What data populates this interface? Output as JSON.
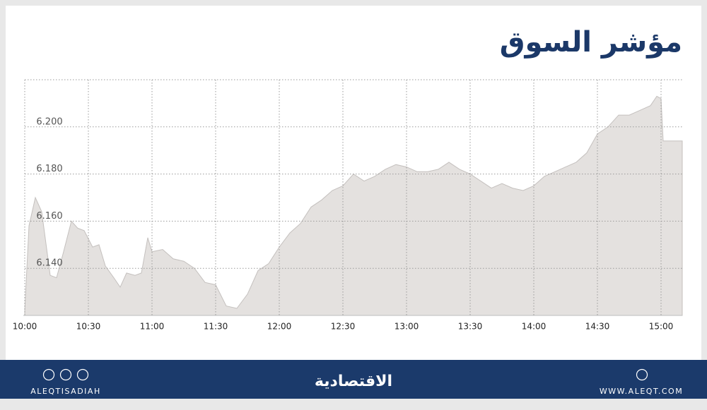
{
  "title": "مؤشر السوق",
  "chart_data": {
    "type": "area",
    "color": "#e4e1df",
    "line_color": "#c4c0be",
    "grid": true,
    "x": [
      "10:00",
      "10:02",
      "10:05",
      "10:08",
      "10:12",
      "10:15",
      "10:18",
      "10:22",
      "10:25",
      "10:28",
      "10:32",
      "10:35",
      "10:38",
      "10:42",
      "10:45",
      "10:48",
      "10:52",
      "10:55",
      "10:58",
      "11:00",
      "11:05",
      "11:10",
      "11:15",
      "11:20",
      "11:25",
      "11:30",
      "11:35",
      "11:40",
      "11:45",
      "11:50",
      "11:55",
      "12:00",
      "12:05",
      "12:10",
      "12:15",
      "12:20",
      "12:25",
      "12:30",
      "12:35",
      "12:40",
      "12:45",
      "12:50",
      "12:55",
      "13:00",
      "13:05",
      "13:10",
      "13:15",
      "13:20",
      "13:25",
      "13:30",
      "13:35",
      "13:40",
      "13:45",
      "13:50",
      "13:55",
      "14:00",
      "14:05",
      "14:10",
      "14:15",
      "14:20",
      "14:25",
      "14:30",
      "14:35",
      "14:40",
      "14:45",
      "14:50",
      "14:55",
      "14:58",
      "15:00",
      "15:01",
      "15:10"
    ],
    "values": [
      6.122,
      6.158,
      6.17,
      6.164,
      6.137,
      6.136,
      6.146,
      6.16,
      6.157,
      6.156,
      6.149,
      6.15,
      6.141,
      6.136,
      6.132,
      6.138,
      6.137,
      6.138,
      6.153,
      6.147,
      6.148,
      6.144,
      6.143,
      6.14,
      6.134,
      6.133,
      6.124,
      6.123,
      6.129,
      6.139,
      6.142,
      6.149,
      6.155,
      6.159,
      6.166,
      6.169,
      6.173,
      6.175,
      6.18,
      6.177,
      6.179,
      6.182,
      6.184,
      6.183,
      6.181,
      6.181,
      6.182,
      6.185,
      6.182,
      6.18,
      6.177,
      6.174,
      6.176,
      6.174,
      6.173,
      6.175,
      6.179,
      6.181,
      6.183,
      6.185,
      6.189,
      6.197,
      6.2,
      6.205,
      6.205,
      6.207,
      6.209,
      6.213,
      6.212,
      6.194,
      6.194
    ],
    "xlim": [
      "10:00",
      "15:10"
    ],
    "xticks": [
      "10:00",
      "10:30",
      "11:00",
      "11:30",
      "12:00",
      "12:30",
      "13:00",
      "13:30",
      "14:00",
      "14:30",
      "15:00"
    ],
    "ylim": [
      6.12,
      6.22
    ],
    "yticks": [
      {
        "value": 6.14,
        "label": "6.140"
      },
      {
        "value": 6.16,
        "label": "6.160"
      },
      {
        "value": 6.18,
        "label": "6.180"
      },
      {
        "value": 6.2,
        "label": "6.200"
      }
    ]
  },
  "footer": {
    "left": "ALEQTISADIAH",
    "logo": "الاقتصادية",
    "right": "WWW.ALEQT.COM"
  }
}
